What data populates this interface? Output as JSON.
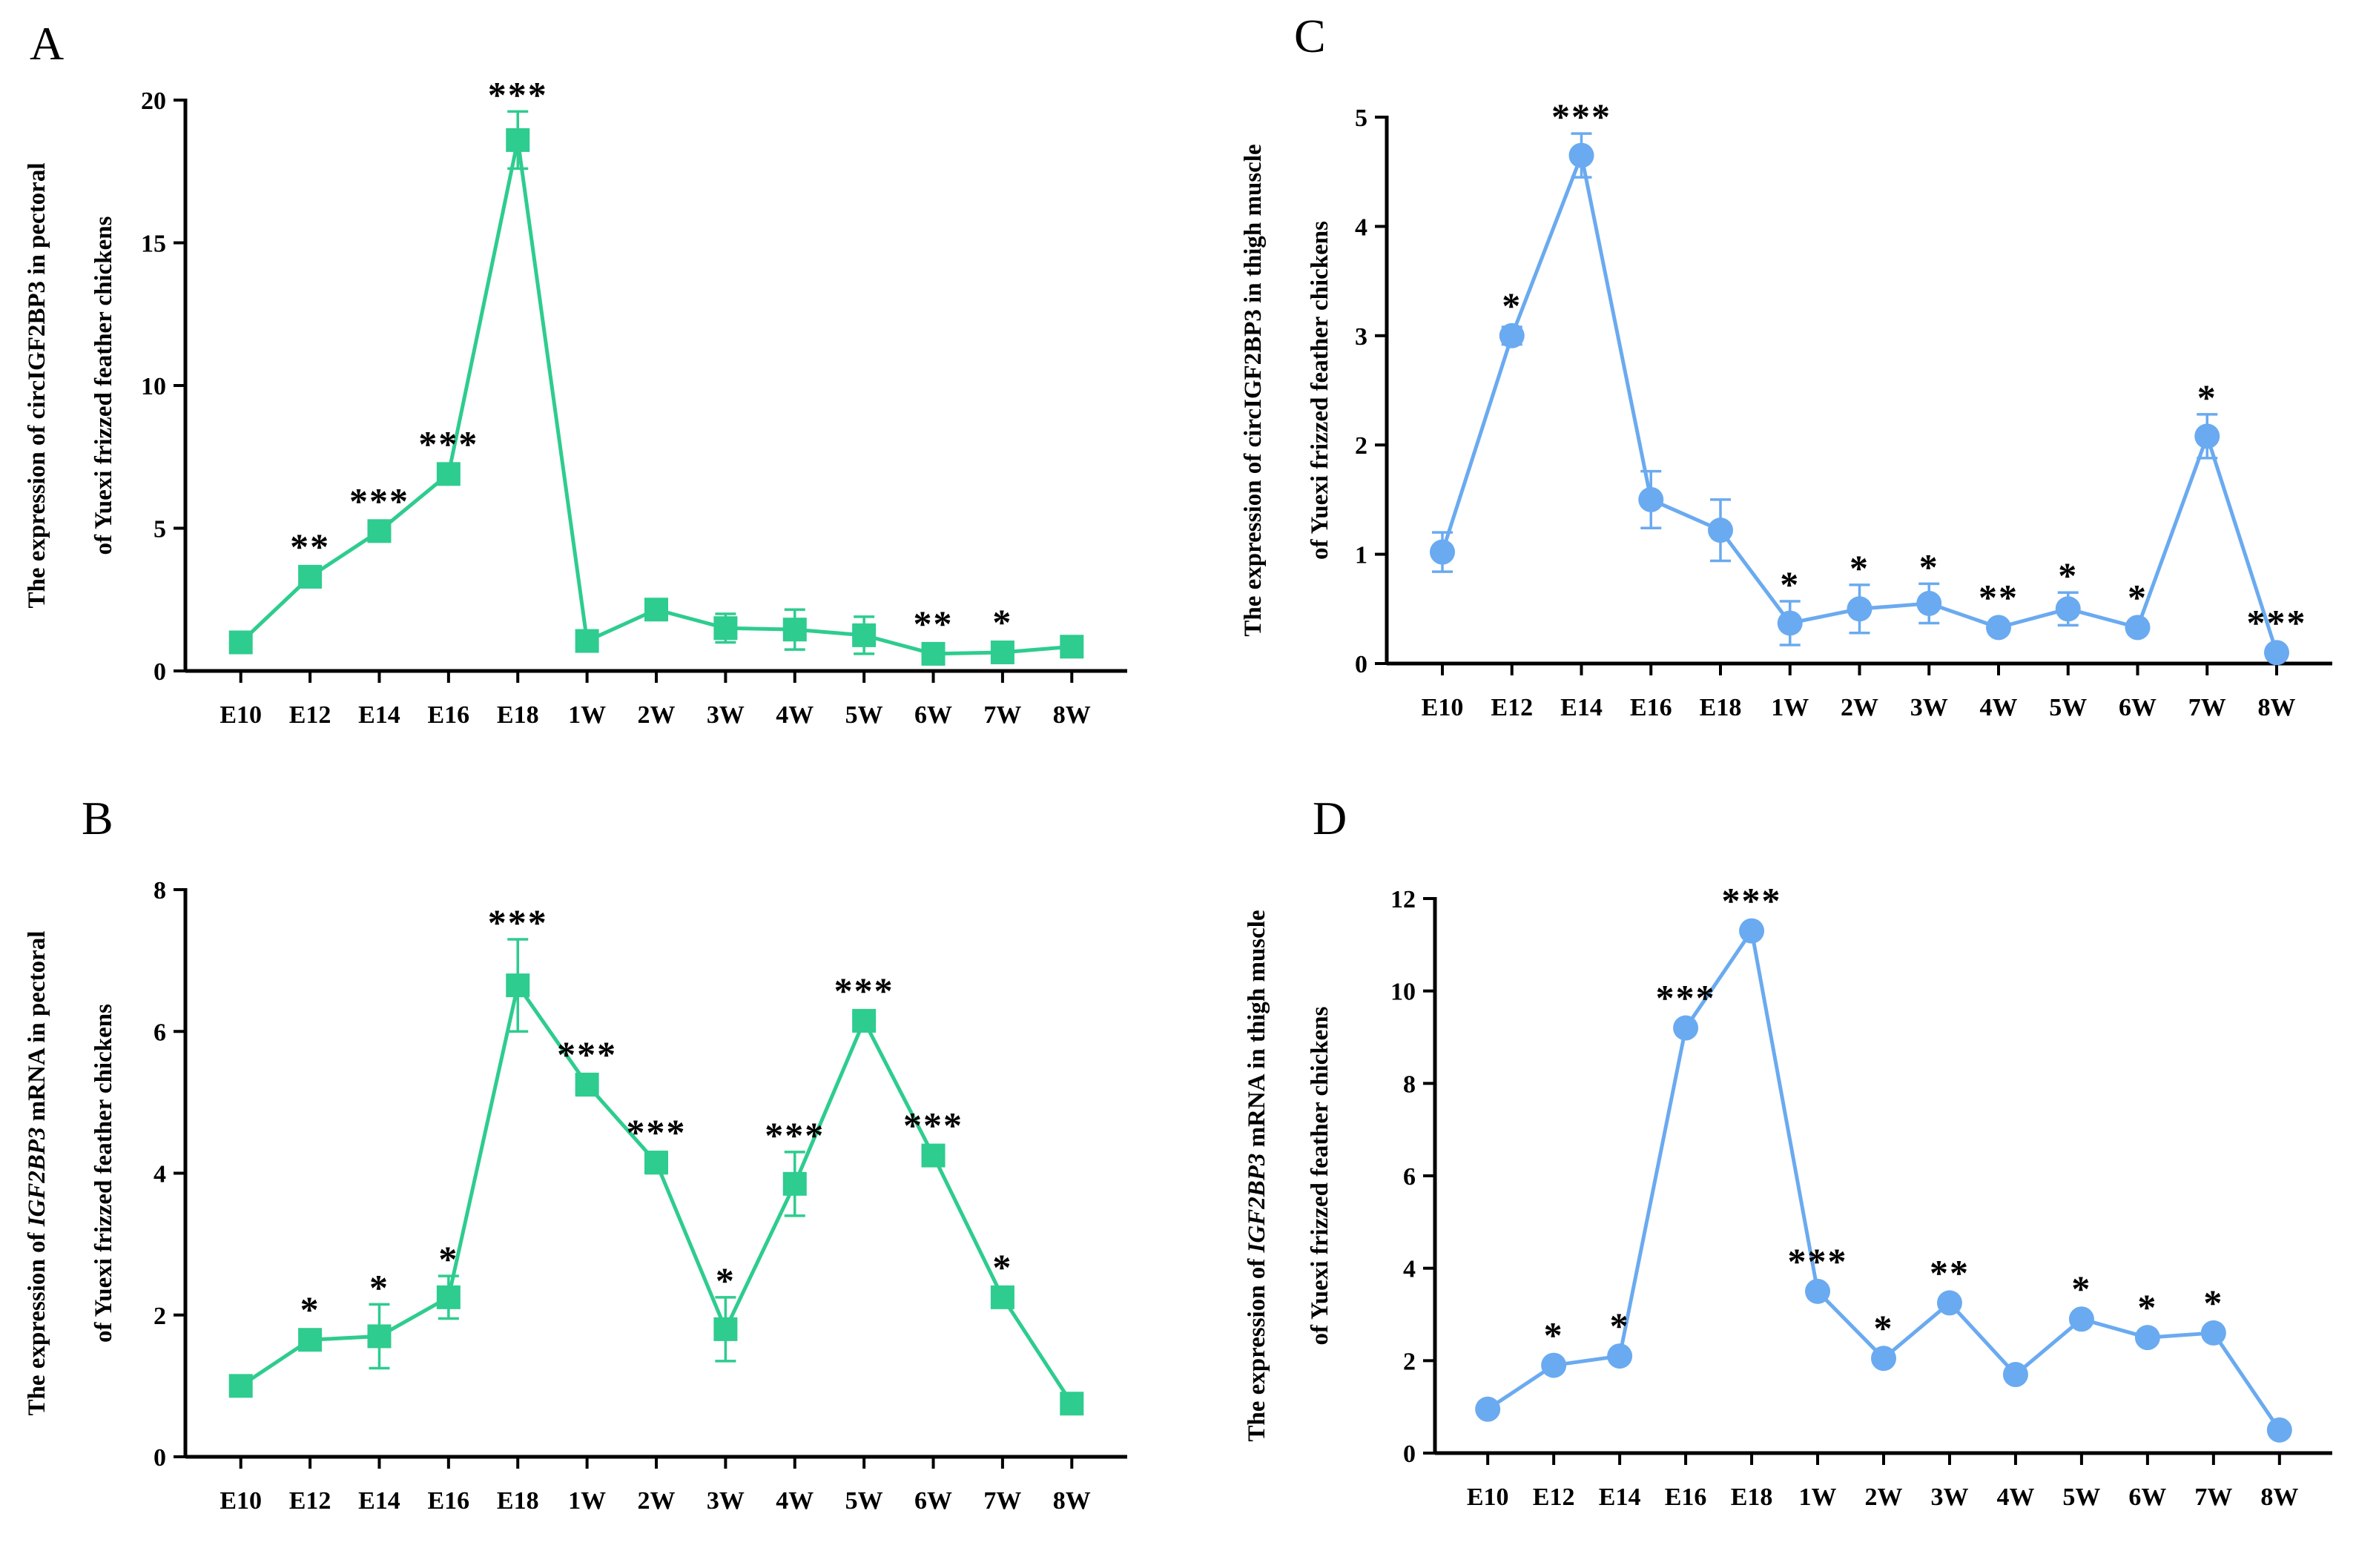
{
  "chart_data": [
    {
      "panel": "A",
      "type": "line",
      "marker": "square",
      "color": "#2ecc8f",
      "ylabel_line1": "The expression of circIGF2BP3 in pectoral",
      "ylabel_line2": "of Yuexi frizzed feather chickens",
      "ylim": [
        0,
        20
      ],
      "yticks": [
        0,
        5,
        10,
        15,
        20
      ],
      "categories": [
        "E10",
        "E12",
        "E14",
        "E16",
        "E18",
        "1W",
        "2W",
        "3W",
        "4W",
        "5W",
        "6W",
        "7W",
        "8W"
      ],
      "values": [
        1.0,
        3.3,
        4.9,
        6.9,
        18.6,
        1.05,
        2.15,
        1.5,
        1.45,
        1.25,
        0.6,
        0.65,
        0.85
      ],
      "errors": [
        0.05,
        0.2,
        0.15,
        0.15,
        1.0,
        0.1,
        0.35,
        0.5,
        0.7,
        0.65,
        0.15,
        0.1,
        0.1
      ],
      "significance": [
        "",
        "**",
        "***",
        "***",
        "***",
        "",
        "",
        "",
        "",
        "",
        "**",
        "*",
        ""
      ]
    },
    {
      "panel": "B",
      "type": "line",
      "marker": "square",
      "color": "#2ecc8f",
      "ylabel_line1_pre": "The expression of ",
      "ylabel_line1_italic": "IGF2BP3",
      "ylabel_line1_post": " mRNA in pectoral",
      "ylabel_line2": "of Yuexi frizzed feather chickens",
      "ylim": [
        0,
        8
      ],
      "yticks": [
        0,
        2,
        4,
        6,
        8
      ],
      "categories": [
        "E10",
        "E12",
        "E14",
        "E16",
        "E18",
        "1W",
        "2W",
        "3W",
        "4W",
        "5W",
        "6W",
        "7W",
        "8W"
      ],
      "values": [
        1.0,
        1.65,
        1.7,
        2.25,
        6.65,
        5.25,
        4.15,
        1.8,
        3.85,
        6.15,
        4.25,
        2.25,
        0.75
      ],
      "errors": [
        0.03,
        0.08,
        0.45,
        0.3,
        0.65,
        0.15,
        0.15,
        0.45,
        0.45,
        0.05,
        0.1,
        0.1,
        0.05
      ],
      "significance": [
        "",
        "*",
        "*",
        "*",
        "***",
        "***",
        "***",
        "*",
        "***",
        "***",
        "***",
        "*",
        ""
      ]
    },
    {
      "panel": "C",
      "type": "line",
      "marker": "circle",
      "color": "#6aaaf0",
      "ylabel_line1": "The expression of circIGF2BP3 in thigh muscle",
      "ylabel_line2": "of Yuexi frizzed feather chickens",
      "ylim": [
        0,
        5
      ],
      "yticks": [
        0,
        1,
        2,
        3,
        4,
        5
      ],
      "categories": [
        "E10",
        "E12",
        "E14",
        "E16",
        "E18",
        "1W",
        "2W",
        "3W",
        "4W",
        "5W",
        "6W",
        "7W",
        "8W"
      ],
      "values": [
        1.02,
        3.0,
        4.65,
        1.5,
        1.22,
        0.37,
        0.5,
        0.55,
        0.33,
        0.5,
        0.33,
        2.08,
        0.1
      ],
      "errors": [
        0.18,
        0.08,
        0.2,
        0.26,
        0.28,
        0.2,
        0.22,
        0.18,
        0.05,
        0.15,
        0.05,
        0.2,
        0.03
      ],
      "significance": [
        "",
        "*",
        "***",
        "",
        "",
        "*",
        "*",
        "*",
        "**",
        "*",
        "*",
        "*",
        "***"
      ]
    },
    {
      "panel": "D",
      "type": "line",
      "marker": "circle",
      "color": "#6aaaf0",
      "ylabel_line1_pre": "The expression of ",
      "ylabel_line1_italic": "IGF2BP3",
      "ylabel_line1_post": " mRNA in thigh muscle",
      "ylabel_line2": "of Yuexi frizzed feather chickens",
      "ylim": [
        0,
        12
      ],
      "yticks": [
        0,
        2,
        4,
        6,
        8,
        10,
        12
      ],
      "categories": [
        "E10",
        "E12",
        "E14",
        "E16",
        "E18",
        "1W",
        "2W",
        "3W",
        "4W",
        "5W",
        "6W",
        "7W",
        "8W"
      ],
      "values": [
        0.95,
        1.9,
        2.1,
        9.2,
        11.3,
        3.5,
        2.05,
        3.25,
        1.7,
        2.9,
        2.5,
        2.6,
        0.5
      ],
      "errors": [
        0.05,
        0.08,
        0.08,
        0.1,
        0.1,
        0.1,
        0.08,
        0.1,
        0.05,
        0.1,
        0.08,
        0.08,
        0.05
      ],
      "significance": [
        "",
        "*",
        "*",
        "***",
        "***",
        "***",
        "*",
        "**",
        "",
        "*",
        "*",
        "*",
        ""
      ]
    }
  ]
}
